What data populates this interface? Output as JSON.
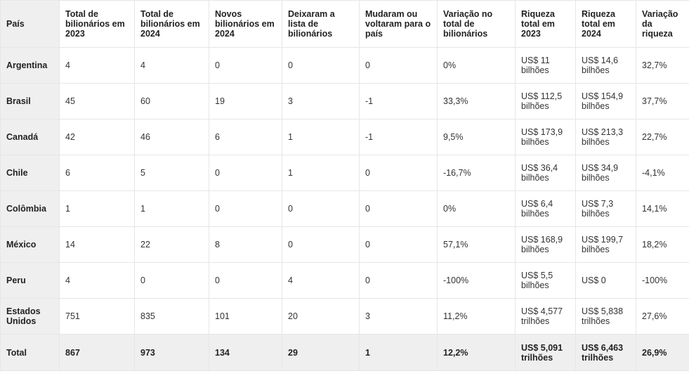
{
  "table": {
    "headers": [
      "País",
      "Total de bilionários em 2023",
      "Total de bilionários em 2024",
      "Novos bilionários em 2024",
      "Deixaram a lista de bilionários",
      "Mudaram ou voltaram para o país",
      "Variação no total de bilionários",
      "Riqueza total em 2023",
      "Riqueza total em 2024",
      "Variação da riqueza"
    ],
    "rows": [
      [
        "Argentina",
        "4",
        "4",
        "0",
        "0",
        "0",
        "0%",
        "US$ 11 bilhões",
        "US$ 14,6 bilhões",
        "32,7%"
      ],
      [
        "Brasil",
        "45",
        "60",
        "19",
        "3",
        "-1",
        "33,3%",
        "US$ 112,5 bilhões",
        "US$ 154,9 bilhões",
        "37,7%"
      ],
      [
        "Canadá",
        "42",
        "46",
        "6",
        "1",
        "-1",
        "9,5%",
        "US$ 173,9 bilhões",
        "US$ 213,3 bilhões",
        "22,7%"
      ],
      [
        "Chile",
        "6",
        "5",
        "0",
        "1",
        "0",
        "-16,7%",
        "US$ 36,4 bilhões",
        "US$ 34,9 bilhões",
        "-4,1%"
      ],
      [
        "Colômbia",
        "1",
        "1",
        "0",
        "0",
        "0",
        "0%",
        "US$ 6,4 bilhões",
        "US$ 7,3 bilhões",
        "14,1%"
      ],
      [
        "México",
        "14",
        "22",
        "8",
        "0",
        "0",
        "57,1%",
        "US$ 168,9 bilhões",
        "US$ 199,7 bilhões",
        "18,2%"
      ],
      [
        "Peru",
        "4",
        "0",
        "0",
        "4",
        "0",
        "-100%",
        "US$ 5,5 bilhões",
        "US$ 0",
        "-100%"
      ],
      [
        "Estados Unidos",
        "751",
        "835",
        "101",
        "20",
        "3",
        "11,2%",
        "US$ 4,577 trilhões",
        "US$ 5,838 trilhões",
        "27,6%"
      ]
    ],
    "total": [
      "Total",
      "867",
      "973",
      "134",
      "29",
      "1",
      "12,2%",
      "US$ 5,091 trilhões",
      "US$ 6,463 trilhões",
      "26,9%"
    ]
  }
}
